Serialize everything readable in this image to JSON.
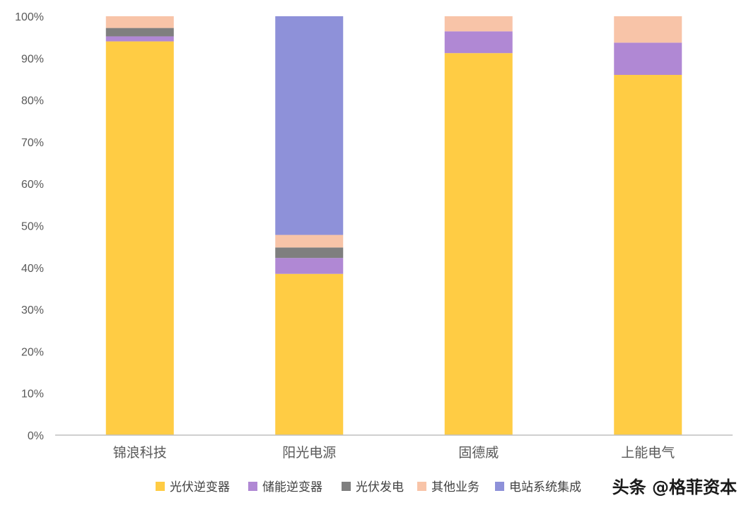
{
  "chart_data": {
    "type": "bar",
    "stacked": true,
    "percent": true,
    "categories": [
      "锦浪科技",
      "阳光电源",
      "固德威",
      "上能电气"
    ],
    "series": [
      {
        "name": "光伏逆变器",
        "color": "#FFCC44",
        "values": [
          94.0,
          38.5,
          91.2,
          86.0
        ]
      },
      {
        "name": "储能逆变器",
        "color": "#B088D4",
        "values": [
          1.2,
          3.8,
          5.2,
          7.7
        ]
      },
      {
        "name": "光伏发电",
        "color": "#7F7F7F",
        "values": [
          2.0,
          2.5,
          0.0,
          0.0
        ]
      },
      {
        "name": "其他业务",
        "color": "#F8C4A8",
        "values": [
          2.8,
          3.0,
          3.6,
          6.3
        ]
      },
      {
        "name": "电站系统集成",
        "color": "#8E91D9",
        "values": [
          0.0,
          52.2,
          0.0,
          0.0
        ]
      }
    ],
    "ylim": [
      0,
      100
    ],
    "yticks": [
      "0%",
      "10%",
      "20%",
      "30%",
      "40%",
      "50%",
      "60%",
      "70%",
      "80%",
      "90%",
      "100%"
    ],
    "grid": false,
    "legend_position": "bottom"
  },
  "watermark": {
    "text": "头条 @格菲资本"
  }
}
